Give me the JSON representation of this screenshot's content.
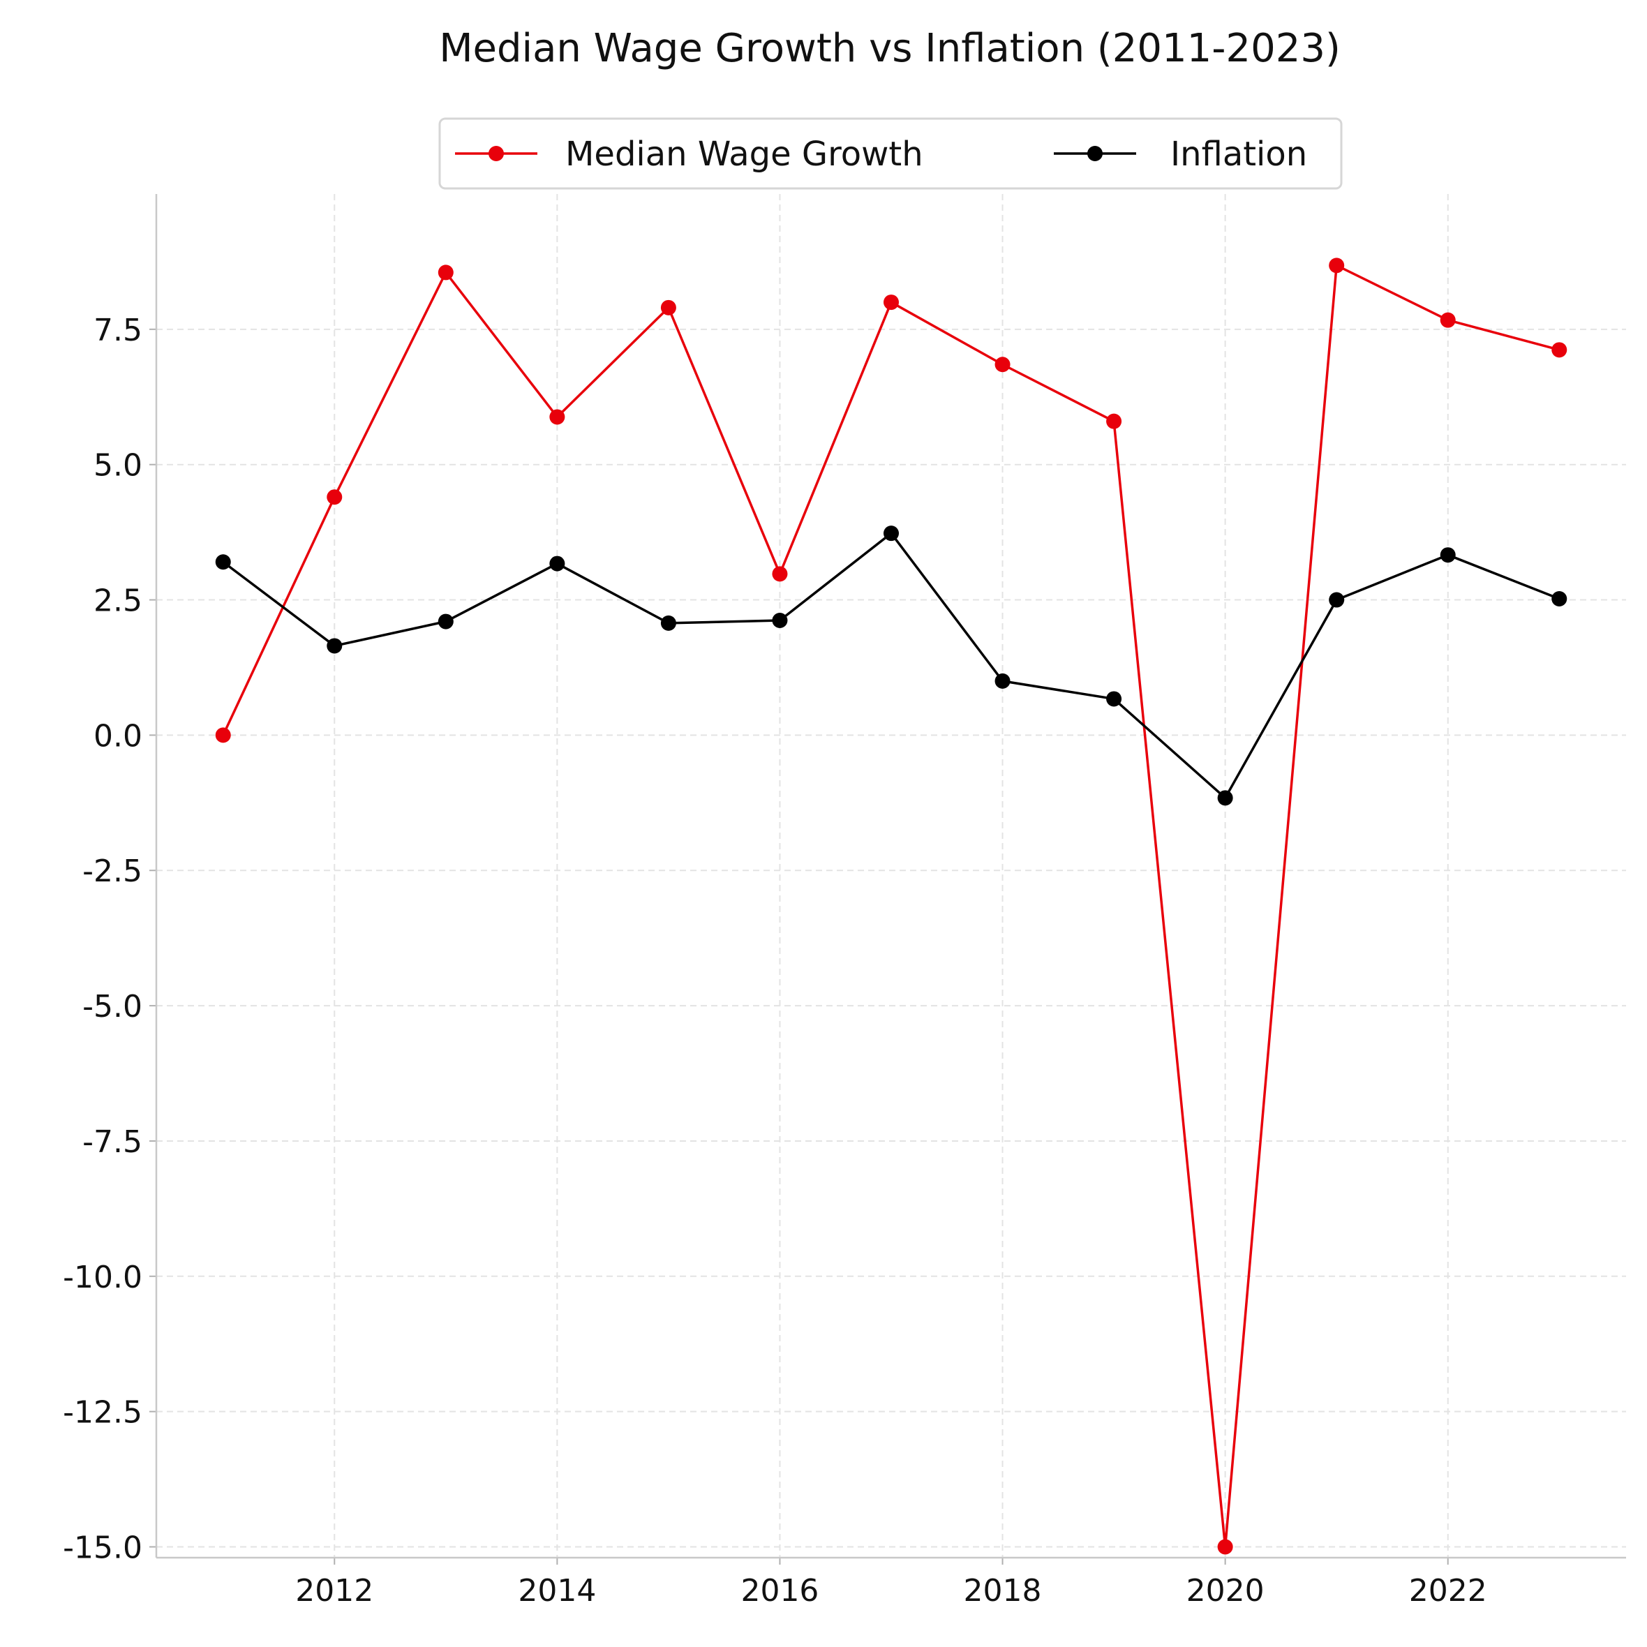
{
  "chart_data": {
    "type": "line",
    "title": "Median Wage Growth vs Inflation (2011-2023)",
    "xlabel": "",
    "ylabel": "",
    "x": [
      2011,
      2012,
      2013,
      2014,
      2015,
      2016,
      2017,
      2018,
      2019,
      2020,
      2021,
      2022,
      2023
    ],
    "xlim": [
      2010.4,
      2023.6
    ],
    "ylim": [
      -15.2,
      10.0
    ],
    "x_ticks": [
      "2012",
      "2014",
      "2016",
      "2018",
      "2020",
      "2022"
    ],
    "y_ticks": [
      "-15.0",
      "-12.5",
      "-10.0",
      "-7.5",
      "-5.0",
      "-2.5",
      "0.0",
      "2.5",
      "5.0",
      "7.5"
    ],
    "grid": true,
    "legend_position": "top-center",
    "series": [
      {
        "name": "Median Wage Growth",
        "color": "#e8000b",
        "values": [
          0.0,
          4.4,
          8.55,
          5.88,
          7.9,
          2.98,
          8.0,
          6.85,
          5.8,
          -15.0,
          8.68,
          7.67,
          7.12
        ]
      },
      {
        "name": "Inflation",
        "color": "#000000",
        "values": [
          3.2,
          1.65,
          2.1,
          3.17,
          2.07,
          2.12,
          3.73,
          1.0,
          0.67,
          -1.16,
          2.5,
          3.33,
          2.52
        ]
      }
    ]
  }
}
